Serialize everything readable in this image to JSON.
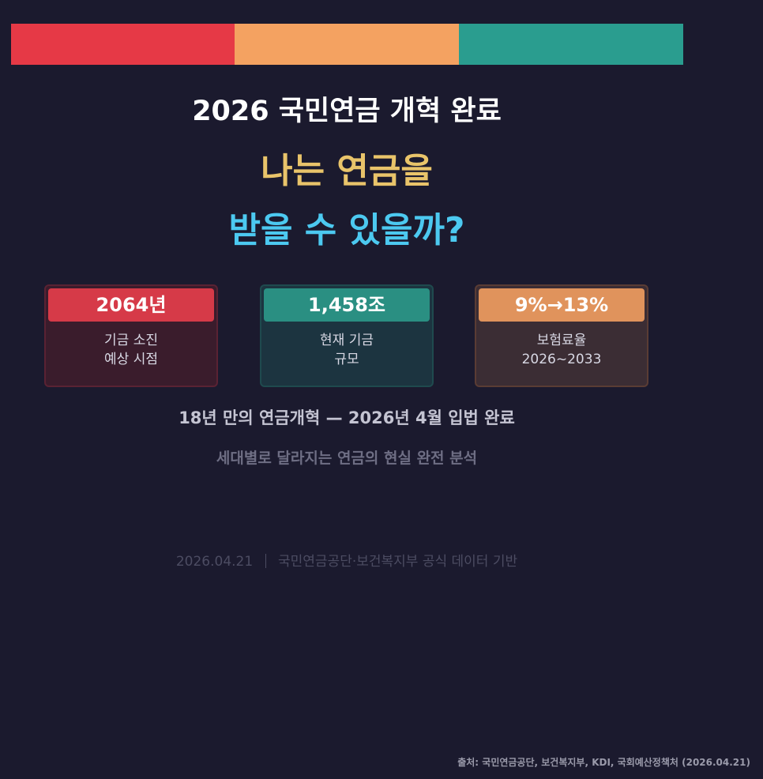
{
  "header": {
    "title": "2026 국민연금 개혁 완료",
    "headline_1": "나는 연금을",
    "headline_2": "받을 수 있을까?"
  },
  "cards": [
    {
      "value": "2064년",
      "label": [
        "기금 소진",
        "예상 시점"
      ]
    },
    {
      "value": "1,458조",
      "label": [
        "현재 기금",
        "규모"
      ]
    },
    {
      "value": "9%→13%",
      "label": [
        "보험료율",
        "2026~2033"
      ]
    }
  ],
  "subtitle": "18년 만의 연금개혁 — 2026년 4월 입법 완료",
  "tagline": "세대별로 달라지는 연금의 현실 완전 분석",
  "footer": {
    "date": "2026.04.21",
    "note": "국민연금공단·보건복지부 공식 데이터 기반"
  },
  "source": "출처: 국민연금공단, 보건복지부, KDI, 국회예산정책처 (2026.04.21)"
}
